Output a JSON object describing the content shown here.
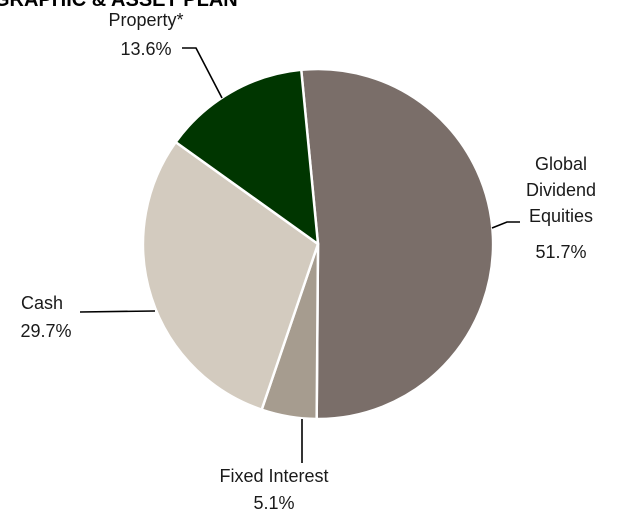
{
  "chart_data": {
    "type": "pie",
    "title": "GRAPHIC & ASSET PLAN",
    "slices": [
      {
        "label": "Global Dividend Equities",
        "value": 51.7,
        "value_label": "51.7%",
        "color": "#7a6e69"
      },
      {
        "label": "Fixed Interest",
        "value": 5.1,
        "value_label": "5.1%",
        "color": "#a69c8f"
      },
      {
        "label": "Cash",
        "value": 29.7,
        "value_label": "29.7%",
        "color": "#d3cbbf"
      },
      {
        "label": "Property*",
        "value": 13.6,
        "value_label": "13.6%",
        "color": "#003600"
      }
    ],
    "start_angle_deg": -5.5,
    "direction": "clockwise",
    "legend": "none",
    "labels": "outside-with-leader-lines"
  }
}
